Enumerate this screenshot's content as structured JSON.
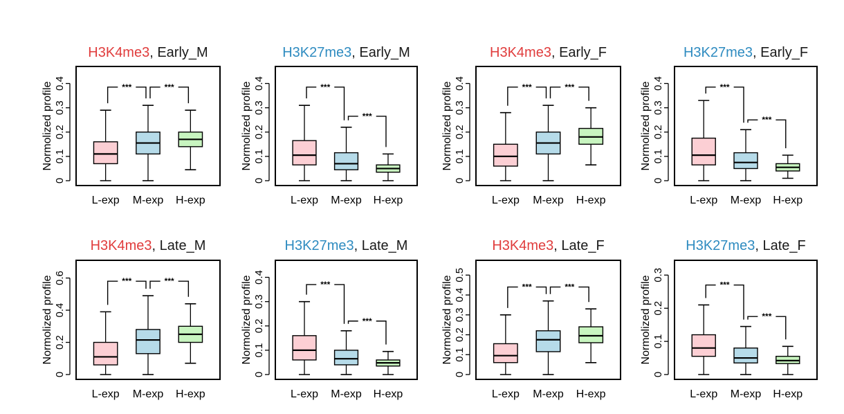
{
  "colors": {
    "mark_red": "#e03c3c",
    "mark_blue": "#2e8bc0",
    "text": "#1a1a1a",
    "box_L": "#fccfd4",
    "box_M": "#b6dbe9",
    "box_H": "#c8f5c0"
  },
  "chart_data": [
    {
      "type": "box",
      "mark": "H3K4me3",
      "mark_color": "red",
      "sample": "Early_M",
      "sep": ", ",
      "ylabel": "Normolized profile",
      "categories": [
        "L-exp",
        "M-exp",
        "H-exp"
      ],
      "ylim": [
        0,
        0.45
      ],
      "yticks": [
        0,
        0.1,
        0.2,
        0.3,
        0.4
      ],
      "ytick_labels": [
        "0",
        "0.1",
        "0.2",
        "0.3",
        "0.4"
      ],
      "boxes": [
        {
          "min": 0.0,
          "q1": 0.07,
          "median": 0.11,
          "q3": 0.16,
          "max": 0.29
        },
        {
          "min": 0.0,
          "q1": 0.11,
          "median": 0.155,
          "q3": 0.2,
          "max": 0.31
        },
        {
          "min": 0.045,
          "q1": 0.14,
          "median": 0.17,
          "q3": 0.2,
          "max": 0.29
        }
      ],
      "significance": [
        {
          "from": 0,
          "to": 1,
          "label": "***",
          "y": 0.385
        },
        {
          "from": 1,
          "to": 2,
          "label": "***",
          "y": 0.385
        }
      ]
    },
    {
      "type": "box",
      "mark": "H3K27me3",
      "mark_color": "blue",
      "sample": "Early_M",
      "sep": ", ",
      "ylabel": "Normolized profile",
      "categories": [
        "L-exp",
        "M-exp",
        "H-exp"
      ],
      "ylim": [
        0,
        0.45
      ],
      "yticks": [
        0,
        0.1,
        0.2,
        0.3,
        0.4
      ],
      "ytick_labels": [
        "0",
        "0.1",
        "0.2",
        "0.3",
        "0.4"
      ],
      "boxes": [
        {
          "min": 0.0,
          "q1": 0.065,
          "median": 0.105,
          "q3": 0.165,
          "max": 0.31
        },
        {
          "min": 0.0,
          "q1": 0.045,
          "median": 0.07,
          "q3": 0.115,
          "max": 0.22
        },
        {
          "min": 0.0,
          "q1": 0.035,
          "median": 0.05,
          "q3": 0.065,
          "max": 0.11
        }
      ],
      "significance": [
        {
          "from": 0,
          "to": 1,
          "label": "***",
          "y": 0.385
        },
        {
          "from": 1,
          "to": 2,
          "label": "***",
          "y": 0.265
        }
      ]
    },
    {
      "type": "box",
      "mark": "H3K4me3",
      "mark_color": "red",
      "sample": "Early_F",
      "sep": ", ",
      "ylabel": "Normolized profile",
      "categories": [
        "L-exp",
        "M-exp",
        "H-exp"
      ],
      "ylim": [
        0,
        0.45
      ],
      "yticks": [
        0,
        0.1,
        0.2,
        0.3,
        0.4
      ],
      "ytick_labels": [
        "0",
        "0.1",
        "0.2",
        "0.3",
        "0.4"
      ],
      "boxes": [
        {
          "min": 0.0,
          "q1": 0.06,
          "median": 0.1,
          "q3": 0.15,
          "max": 0.28
        },
        {
          "min": 0.0,
          "q1": 0.11,
          "median": 0.155,
          "q3": 0.2,
          "max": 0.31
        },
        {
          "min": 0.065,
          "q1": 0.15,
          "median": 0.18,
          "q3": 0.215,
          "max": 0.3
        }
      ],
      "significance": [
        {
          "from": 0,
          "to": 1,
          "label": "***",
          "y": 0.385
        },
        {
          "from": 1,
          "to": 2,
          "label": "***",
          "y": 0.385
        }
      ]
    },
    {
      "type": "box",
      "mark": "H3K27me3",
      "mark_color": "blue",
      "sample": "Early_F",
      "sep": ", ",
      "ylabel": "Normolized profile",
      "categories": [
        "L-exp",
        "M-exp",
        "H-exp"
      ],
      "ylim": [
        0,
        0.45
      ],
      "yticks": [
        0,
        0.1,
        0.2,
        0.3,
        0.4
      ],
      "ytick_labels": [
        "0",
        "0.1",
        "0.2",
        "0.3",
        "0.4"
      ],
      "boxes": [
        {
          "min": 0.0,
          "q1": 0.065,
          "median": 0.105,
          "q3": 0.175,
          "max": 0.33
        },
        {
          "min": 0.0,
          "q1": 0.05,
          "median": 0.075,
          "q3": 0.115,
          "max": 0.21
        },
        {
          "min": 0.01,
          "q1": 0.04,
          "median": 0.055,
          "q3": 0.07,
          "max": 0.105
        }
      ],
      "significance": [
        {
          "from": 0,
          "to": 1,
          "label": "***",
          "y": 0.385
        },
        {
          "from": 1,
          "to": 2,
          "label": "***",
          "y": 0.25
        }
      ]
    },
    {
      "type": "box",
      "mark": "H3K4me3",
      "mark_color": "red",
      "sample": "Late_M",
      "sep": ", ",
      "ylabel": "Normolized profile",
      "categories": [
        "L-exp",
        "M-exp",
        "H-exp"
      ],
      "ylim": [
        0,
        0.68
      ],
      "yticks": [
        0,
        0.2,
        0.4,
        0.6
      ],
      "ytick_labels": [
        "0",
        "0.2",
        "0.4",
        "0.6"
      ],
      "boxes": [
        {
          "min": 0.0,
          "q1": 0.06,
          "median": 0.11,
          "q3": 0.2,
          "max": 0.39
        },
        {
          "min": 0.0,
          "q1": 0.13,
          "median": 0.215,
          "q3": 0.28,
          "max": 0.49
        },
        {
          "min": 0.07,
          "q1": 0.2,
          "median": 0.25,
          "q3": 0.3,
          "max": 0.44
        }
      ],
      "significance": [
        {
          "from": 0,
          "to": 1,
          "label": "***",
          "y": 0.58
        },
        {
          "from": 1,
          "to": 2,
          "label": "***",
          "y": 0.58
        }
      ]
    },
    {
      "type": "box",
      "mark": "H3K27me3",
      "mark_color": "blue",
      "sample": "Late_M",
      "sep": ", ",
      "ylabel": "Normolized profile",
      "categories": [
        "L-exp",
        "M-exp",
        "H-exp"
      ],
      "ylim": [
        0,
        0.45
      ],
      "yticks": [
        0,
        0.1,
        0.2,
        0.3,
        0.4
      ],
      "ytick_labels": [
        "0",
        "0.1",
        "0.2",
        "0.3",
        "0.4"
      ],
      "boxes": [
        {
          "min": 0.0,
          "q1": 0.06,
          "median": 0.1,
          "q3": 0.16,
          "max": 0.3
        },
        {
          "min": 0.0,
          "q1": 0.04,
          "median": 0.065,
          "q3": 0.1,
          "max": 0.18
        },
        {
          "min": 0.0,
          "q1": 0.035,
          "median": 0.048,
          "q3": 0.06,
          "max": 0.095
        }
      ],
      "significance": [
        {
          "from": 0,
          "to": 1,
          "label": "***",
          "y": 0.37
        },
        {
          "from": 1,
          "to": 2,
          "label": "***",
          "y": 0.22
        }
      ]
    },
    {
      "type": "box",
      "mark": "H3K4me3",
      "mark_color": "red",
      "sample": "Late_F",
      "sep": ", ",
      "ylabel": "Normolized profile",
      "categories": [
        "L-exp",
        "M-exp",
        "H-exp"
      ],
      "ylim": [
        0,
        0.55
      ],
      "yticks": [
        0,
        0.1,
        0.2,
        0.3,
        0.4,
        0.5
      ],
      "ytick_labels": [
        "0",
        "0.1",
        "0.2",
        "0.3",
        "0.4",
        "0.5"
      ],
      "boxes": [
        {
          "min": 0.0,
          "q1": 0.06,
          "median": 0.095,
          "q3": 0.155,
          "max": 0.3
        },
        {
          "min": 0.0,
          "q1": 0.115,
          "median": 0.175,
          "q3": 0.22,
          "max": 0.37
        },
        {
          "min": 0.06,
          "q1": 0.16,
          "median": 0.195,
          "q3": 0.24,
          "max": 0.33
        }
      ],
      "significance": [
        {
          "from": 0,
          "to": 1,
          "label": "***",
          "y": 0.44
        },
        {
          "from": 1,
          "to": 2,
          "label": "***",
          "y": 0.44
        }
      ]
    },
    {
      "type": "box",
      "mark": "H3K27me3",
      "mark_color": "blue",
      "sample": "Late_F",
      "sep": ", ",
      "ylabel": "Normolized profile",
      "categories": [
        "L-exp",
        "M-exp",
        "H-exp"
      ],
      "ylim": [
        0,
        0.33
      ],
      "yticks": [
        0,
        0.1,
        0.2,
        0.3
      ],
      "ytick_labels": [
        "0",
        "0.1",
        "0.2",
        "0.3"
      ],
      "boxes": [
        {
          "min": 0.0,
          "q1": 0.055,
          "median": 0.08,
          "q3": 0.12,
          "max": 0.21
        },
        {
          "min": 0.0,
          "q1": 0.035,
          "median": 0.05,
          "q3": 0.08,
          "max": 0.145
        },
        {
          "min": 0.0,
          "q1": 0.033,
          "median": 0.042,
          "q3": 0.055,
          "max": 0.085
        }
      ],
      "significance": [
        {
          "from": 0,
          "to": 1,
          "label": "***",
          "y": 0.27
        },
        {
          "from": 1,
          "to": 2,
          "label": "***",
          "y": 0.175
        }
      ]
    }
  ]
}
